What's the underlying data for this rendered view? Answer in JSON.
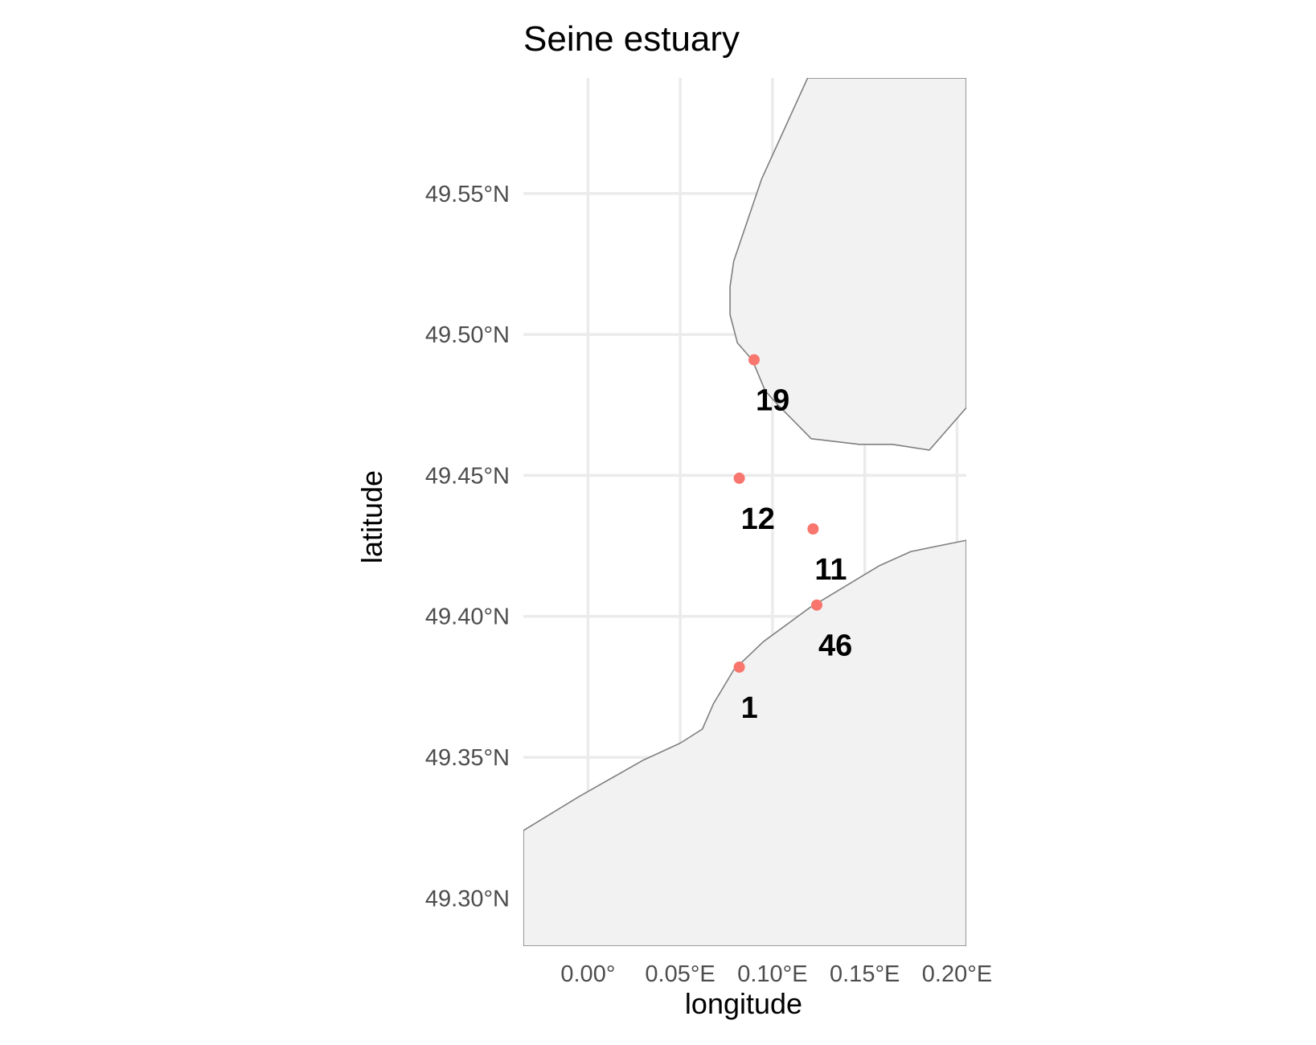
{
  "map": {
    "title": "Seine estuary",
    "xlabel": "longitude",
    "ylabel": "latitude",
    "xlim": [
      -0.035,
      0.205
    ],
    "ylim": [
      49.283,
      49.591
    ],
    "x_ticks": [
      {
        "value": 0.0,
        "label": "0.00°"
      },
      {
        "value": 0.05,
        "label": "0.05°E"
      },
      {
        "value": 0.1,
        "label": "0.10°E"
      },
      {
        "value": 0.15,
        "label": "0.15°E"
      },
      {
        "value": 0.2,
        "label": "0.20°E"
      }
    ],
    "y_ticks": [
      {
        "value": 49.3,
        "label": "49.30°N"
      },
      {
        "value": 49.35,
        "label": "49.35°N"
      },
      {
        "value": 49.4,
        "label": "49.40°N"
      },
      {
        "value": 49.45,
        "label": "49.45°N"
      },
      {
        "value": 49.5,
        "label": "49.50°N"
      },
      {
        "value": 49.55,
        "label": "49.55°N"
      }
    ],
    "grid": true,
    "colors": {
      "land_fill": "#f2f2f2",
      "coastline": "#7f7f7f",
      "grid": "#ebebeb",
      "point": "#f8766d",
      "label": "#000000"
    }
  },
  "chart_data": {
    "type": "scatter",
    "x": [
      0.082,
      0.09,
      0.122,
      0.124,
      0.082
    ],
    "y": [
      49.449,
      49.491,
      49.431,
      49.404,
      49.382
    ],
    "labels": [
      "12",
      "19",
      "11",
      "46",
      "1"
    ],
    "land": [
      {
        "name": "north-shore",
        "coords": [
          [
            0.119,
            49.591
          ],
          [
            0.094,
            49.555
          ],
          [
            0.079,
            49.526
          ],
          [
            0.077,
            49.517
          ],
          [
            0.077,
            49.507
          ],
          [
            0.081,
            49.497
          ],
          [
            0.089,
            49.491
          ],
          [
            0.096,
            49.48
          ],
          [
            0.103,
            49.475
          ],
          [
            0.121,
            49.463
          ],
          [
            0.147,
            49.461
          ],
          [
            0.165,
            49.461
          ],
          [
            0.185,
            49.459
          ],
          [
            0.205,
            49.474
          ],
          [
            0.205,
            49.591
          ]
        ]
      },
      {
        "name": "south-shore",
        "coords": [
          [
            -0.035,
            49.324
          ],
          [
            -0.005,
            49.336
          ],
          [
            0.03,
            49.349
          ],
          [
            0.05,
            49.355
          ],
          [
            0.062,
            49.36
          ],
          [
            0.068,
            49.369
          ],
          [
            0.079,
            49.381
          ],
          [
            0.095,
            49.391
          ],
          [
            0.12,
            49.403
          ],
          [
            0.158,
            49.418
          ],
          [
            0.175,
            49.423
          ],
          [
            0.205,
            49.427
          ],
          [
            0.205,
            49.283
          ],
          [
            -0.035,
            49.283
          ]
        ]
      }
    ]
  }
}
